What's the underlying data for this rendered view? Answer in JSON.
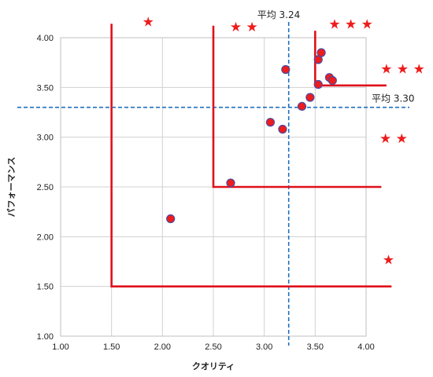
{
  "chart_data": {
    "type": "scatter",
    "xlabel": "クオリティ",
    "ylabel": "パフォーマンス",
    "xlim": [
      1.0,
      4.0
    ],
    "ylim": [
      1.0,
      4.0
    ],
    "x_ticks": [
      "1.00",
      "1.50",
      "2.00",
      "2.50",
      "3.00",
      "3.50",
      "4.00"
    ],
    "y_ticks": [
      "1.00",
      "1.50",
      "2.00",
      "2.50",
      "3.00",
      "3.50",
      "4.00"
    ],
    "grid": true,
    "points": [
      {
        "x": 2.08,
        "y": 2.18
      },
      {
        "x": 2.67,
        "y": 2.54
      },
      {
        "x": 3.06,
        "y": 3.15
      },
      {
        "x": 3.18,
        "y": 3.08
      },
      {
        "x": 3.21,
        "y": 3.68
      },
      {
        "x": 3.37,
        "y": 3.31
      },
      {
        "x": 3.45,
        "y": 3.4
      },
      {
        "x": 3.53,
        "y": 3.53
      },
      {
        "x": 3.53,
        "y": 3.78
      },
      {
        "x": 3.56,
        "y": 3.85
      },
      {
        "x": 3.64,
        "y": 3.6
      },
      {
        "x": 3.67,
        "y": 3.57
      }
    ],
    "mean_lines": {
      "x": {
        "value": 3.24,
        "label": "平均 3.24"
      },
      "y": {
        "value": 3.3,
        "label": "平均 3.30"
      }
    },
    "tier_boundaries": [
      {
        "x": 1.5,
        "y": 1.5,
        "x_end": 4.25,
        "y_top": 4.14
      },
      {
        "x": 2.5,
        "y": 2.5,
        "x_end": 4.15,
        "y_top": 4.12
      },
      {
        "x": 3.5,
        "y": 3.52,
        "x_end": 4.2,
        "y_top": 4.07
      }
    ],
    "star_annotations": [
      {
        "text": "★",
        "x": 1.86,
        "y": 4.16
      },
      {
        "text": "★ ★",
        "x": 2.8,
        "y": 4.11
      },
      {
        "text": "★ ★ ★",
        "x": 3.85,
        "y": 4.14
      },
      {
        "text": "★ ★ ★",
        "x": 4.36,
        "y": 3.69
      },
      {
        "text": "★ ★",
        "x": 4.27,
        "y": 2.99
      },
      {
        "text": "★",
        "x": 4.22,
        "y": 1.77
      }
    ],
    "colors": {
      "point_fill": "#ee1c1c",
      "point_stroke": "#4a4aa0",
      "boundary": "#e0101a",
      "mean_line": "#1f6fbf",
      "grid": "#d0d0d0",
      "plot_border": "#bfbfbf",
      "star": "#ee1c1c"
    }
  }
}
